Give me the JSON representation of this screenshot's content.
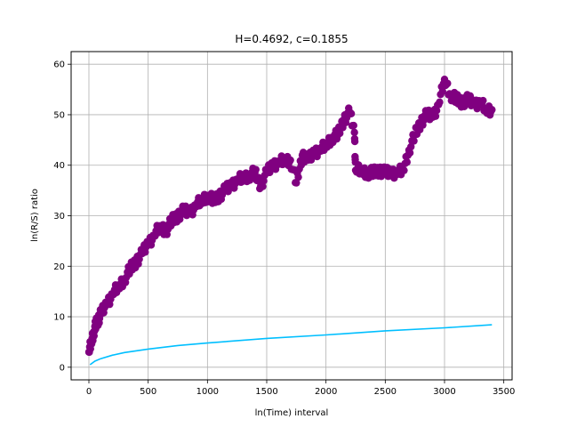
{
  "chart_data": {
    "type": "scatter",
    "title": "H=0.4692, c=0.1855",
    "xlabel": "ln(Time) interval",
    "ylabel": "ln(R/S) ratio",
    "xlim": [
      -150,
      3570
    ],
    "ylim": [
      -2.5,
      62.5
    ],
    "xticks": [
      0,
      500,
      1000,
      1500,
      2000,
      2500,
      3000,
      3500
    ],
    "yticks": [
      0,
      10,
      20,
      30,
      40,
      50,
      60
    ],
    "grid": true,
    "colors": {
      "scatter": "#800080",
      "fit": "#00bfff"
    },
    "series": [
      {
        "kind": "scatter",
        "points": [
          [
            0,
            3
          ],
          [
            20,
            5
          ],
          [
            40,
            7
          ],
          [
            60,
            8.5
          ],
          [
            80,
            9.5
          ],
          [
            100,
            10.5
          ],
          [
            150,
            12.5
          ],
          [
            200,
            14.5
          ],
          [
            250,
            16
          ],
          [
            300,
            17.5
          ],
          [
            350,
            19.5
          ],
          [
            400,
            21
          ],
          [
            450,
            22.5
          ],
          [
            500,
            24.5
          ],
          [
            550,
            26
          ],
          [
            600,
            28
          ],
          [
            650,
            27
          ],
          [
            700,
            29
          ],
          [
            750,
            30
          ],
          [
            800,
            31
          ],
          [
            850,
            30.5
          ],
          [
            900,
            32
          ],
          [
            950,
            33
          ],
          [
            1000,
            34
          ],
          [
            1050,
            33
          ],
          [
            1100,
            34
          ],
          [
            1150,
            35
          ],
          [
            1200,
            36
          ],
          [
            1250,
            37
          ],
          [
            1300,
            37.5
          ],
          [
            1350,
            38
          ],
          [
            1400,
            38.5
          ],
          [
            1450,
            36
          ],
          [
            1500,
            38.5
          ],
          [
            1550,
            40
          ],
          [
            1600,
            40.5
          ],
          [
            1650,
            41
          ],
          [
            1700,
            41
          ],
          [
            1750,
            36.5
          ],
          [
            1800,
            42
          ],
          [
            1850,
            41
          ],
          [
            1900,
            42.5
          ],
          [
            1950,
            43
          ],
          [
            2000,
            44
          ],
          [
            2050,
            45.5
          ],
          [
            2100,
            46
          ],
          [
            2150,
            49
          ],
          [
            2200,
            50.5
          ],
          [
            2240,
            46.5
          ],
          [
            2250,
            39
          ],
          [
            2300,
            39
          ],
          [
            2350,
            38.5
          ],
          [
            2400,
            38.5
          ],
          [
            2450,
            39
          ],
          [
            2500,
            38.5
          ],
          [
            2550,
            38.5
          ],
          [
            2600,
            38.5
          ],
          [
            2650,
            39
          ],
          [
            2700,
            43
          ],
          [
            2750,
            46
          ],
          [
            2800,
            48.5
          ],
          [
            2850,
            50
          ],
          [
            2900,
            49.5
          ],
          [
            2950,
            52
          ],
          [
            3000,
            57
          ],
          [
            3050,
            54
          ],
          [
            3100,
            53
          ],
          [
            3150,
            52.5
          ],
          [
            3200,
            53
          ],
          [
            3250,
            52
          ],
          [
            3300,
            52.5
          ],
          [
            3350,
            51
          ],
          [
            3400,
            51
          ]
        ]
      },
      {
        "kind": "line",
        "points": [
          [
            10,
            0.5
          ],
          [
            50,
            1.2
          ],
          [
            100,
            1.7
          ],
          [
            200,
            2.4
          ],
          [
            300,
            2.9
          ],
          [
            500,
            3.6
          ],
          [
            750,
            4.3
          ],
          [
            1000,
            4.8
          ],
          [
            1500,
            5.7
          ],
          [
            2000,
            6.4
          ],
          [
            2500,
            7.2
          ],
          [
            3000,
            7.8
          ],
          [
            3400,
            8.4
          ]
        ]
      }
    ]
  }
}
